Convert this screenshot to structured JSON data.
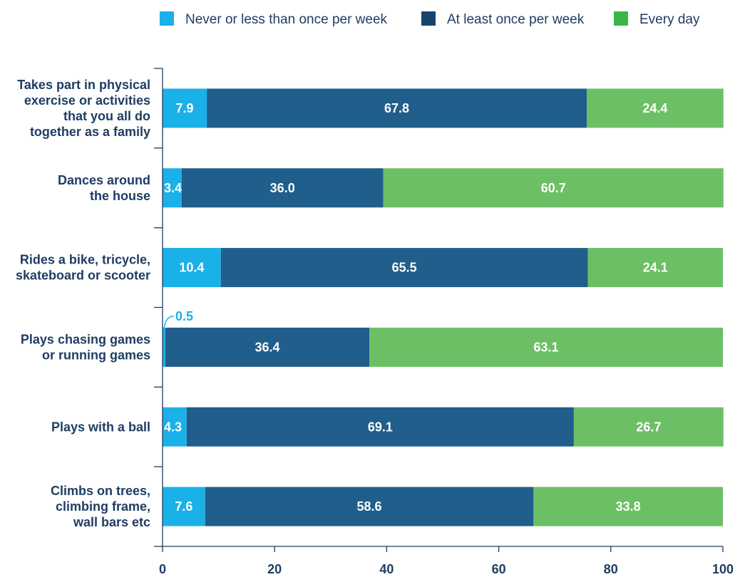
{
  "chart_data": {
    "type": "bar",
    "orientation": "horizontal",
    "stacked": true,
    "title": "",
    "xlabel": "",
    "ylabel": "",
    "xlim": [
      0,
      100
    ],
    "x_ticks": [
      0,
      20,
      40,
      60,
      80,
      100
    ],
    "grid": false,
    "legend_position": "top",
    "categories": [
      "Takes part in physical exercise or activities that you all do together as a family",
      "Dances around the house",
      "Rides a bike, tricycle, skateboard or scooter",
      "Plays chasing games or running games",
      "Plays with a ball",
      "Climbs on trees, climbing frame, wall bars etc"
    ],
    "category_lines": [
      [
        "Takes part in physical",
        "exercise or activities",
        "that you all do",
        "together as a family"
      ],
      [
        "Dances around",
        "the house"
      ],
      [
        "Rides a bike, tricycle,",
        "skateboard or scooter"
      ],
      [
        "Plays chasing games",
        "or running games"
      ],
      [
        "Plays with a ball"
      ],
      [
        "Climbs on trees,",
        "climbing frame,",
        "wall bars etc"
      ]
    ],
    "series": [
      {
        "name": "Never or less than once per week",
        "color": "#1ab0e8",
        "values": [
          7.9,
          3.4,
          10.4,
          0.5,
          4.3,
          7.6
        ]
      },
      {
        "name": "At least once per week",
        "color": "#205e8b",
        "values": [
          67.8,
          36.0,
          65.5,
          36.4,
          69.1,
          58.6
        ]
      },
      {
        "name": "Every day",
        "color": "#6cbf65",
        "values": [
          24.4,
          60.7,
          24.1,
          63.1,
          26.7,
          33.8
        ]
      }
    ],
    "legend_colors": [
      "#1ab0e8",
      "#17446f",
      "#3bb54a"
    ],
    "text_color": "#1f3d63"
  }
}
